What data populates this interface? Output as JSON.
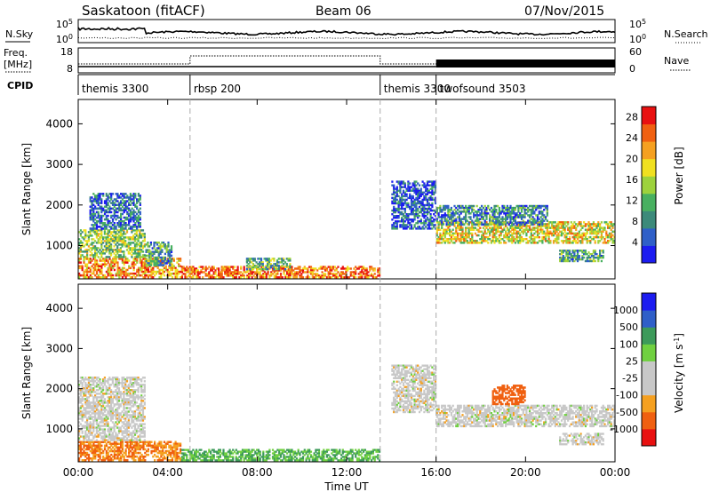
{
  "header": {
    "station": "Saskatoon (fitACF)",
    "beam": "Beam 06",
    "date": "07/Nov/2015"
  },
  "aux": {
    "nsky_label": "N.Sky",
    "nsearch_label": "N.Search",
    "freq_label": "Freq.",
    "freq_unit": "[MHz]",
    "nave_label": "Nave",
    "cpid_label": "CPID",
    "noise_ticks": [
      "10^5",
      "10^0"
    ],
    "noise_ticks_right": [
      "10^5",
      "10^0"
    ],
    "freq_ticks": [
      "18",
      "8"
    ],
    "nave_ticks": [
      "60",
      "0"
    ],
    "cpid_segments": [
      {
        "start_hour": 0,
        "end_hour": 5,
        "label": "themis 3300"
      },
      {
        "start_hour": 5,
        "end_hour": 13.5,
        "label": "rbsp 200"
      },
      {
        "start_hour": 13.5,
        "end_hour": 16,
        "label": "themis 3300"
      },
      {
        "start_hour": 16,
        "end_hour": 24,
        "label": "twofsound 3503"
      }
    ]
  },
  "colors": {
    "power": [
      "#1c1cf0",
      "#2f5fc8",
      "#3c8a7a",
      "#48b060",
      "#9dd23c",
      "#f0e020",
      "#f5a020",
      "#f06010",
      "#e81010"
    ],
    "velocity": [
      "#e81010",
      "#f06010",
      "#f5a020",
      "#c8c8c8",
      "#c8c8c8",
      "#70d040",
      "#3c9a5a",
      "#2f5fc8",
      "#1c1cf0"
    ]
  },
  "chart_data": [
    {
      "type": "heatmap",
      "title": "Power",
      "xlabel": "",
      "ylabel": "Slant Range [km]",
      "x_ticks": [
        "00:00",
        "04:00",
        "08:00",
        "12:00",
        "16:00",
        "20:00",
        "00:00"
      ],
      "xlim_hours": [
        0,
        24
      ],
      "ylim": [
        180,
        4600
      ],
      "y_ticks": [
        1000,
        2000,
        3000,
        4000
      ],
      "colorbar_label": "Power [dB]",
      "colorbar_ticks": [
        4,
        8,
        12,
        16,
        20,
        24,
        28
      ],
      "colorbar_range": [
        0,
        30
      ],
      "regions": [
        {
          "t0": 0.0,
          "t1": 4.6,
          "r0": 200,
          "r1": 700,
          "value": 22
        },
        {
          "t0": 0.0,
          "t1": 3.0,
          "r0": 700,
          "r1": 1400,
          "value": 14
        },
        {
          "t0": 3.0,
          "t1": 4.2,
          "r0": 500,
          "r1": 1100,
          "value": 10
        },
        {
          "t0": 0.5,
          "t1": 2.8,
          "r0": 1400,
          "r1": 2300,
          "value": 6
        },
        {
          "t0": 4.6,
          "t1": 13.5,
          "r0": 200,
          "r1": 500,
          "value": 24
        },
        {
          "t0": 7.5,
          "t1": 9.5,
          "r0": 400,
          "r1": 700,
          "value": 12
        },
        {
          "t0": 14.0,
          "t1": 16.0,
          "r0": 1400,
          "r1": 2600,
          "value": 5
        },
        {
          "t0": 16.0,
          "t1": 24.0,
          "r0": 1050,
          "r1": 1600,
          "value": 18
        },
        {
          "t0": 16.0,
          "t1": 21.0,
          "r0": 1500,
          "r1": 2000,
          "value": 8
        },
        {
          "t0": 21.5,
          "t1": 23.5,
          "r0": 600,
          "r1": 900,
          "value": 10
        }
      ]
    },
    {
      "type": "heatmap",
      "title": "Velocity",
      "xlabel": "Time UT",
      "ylabel": "Slant Range [km]",
      "x_ticks": [
        "00:00",
        "04:00",
        "08:00",
        "12:00",
        "16:00",
        "20:00",
        "00:00"
      ],
      "xlim_hours": [
        0,
        24
      ],
      "ylim": [
        180,
        4600
      ],
      "y_ticks": [
        1000,
        2000,
        3000,
        4000
      ],
      "colorbar_label": "Velocity [m s^-1]",
      "colorbar_ticks": [
        1000,
        500,
        100,
        25,
        -25,
        -100,
        -500,
        -1000
      ],
      "regions": [
        {
          "t0": 0.0,
          "t1": 4.6,
          "r0": 200,
          "r1": 700,
          "value": -100
        },
        {
          "t0": 0.0,
          "t1": 3.0,
          "r0": 700,
          "r1": 2300,
          "value": 0
        },
        {
          "t0": 4.6,
          "t1": 13.5,
          "r0": 200,
          "r1": 500,
          "value": 100
        },
        {
          "t0": 14.0,
          "t1": 16.0,
          "r0": 1400,
          "r1": 2600,
          "value": 0
        },
        {
          "t0": 16.0,
          "t1": 24.0,
          "r0": 1050,
          "r1": 1600,
          "value": 0
        },
        {
          "t0": 18.5,
          "t1": 20.0,
          "r0": 1600,
          "r1": 2100,
          "value": -200
        },
        {
          "t0": 21.5,
          "t1": 23.5,
          "r0": 600,
          "r1": 900,
          "value": 0
        }
      ]
    }
  ]
}
